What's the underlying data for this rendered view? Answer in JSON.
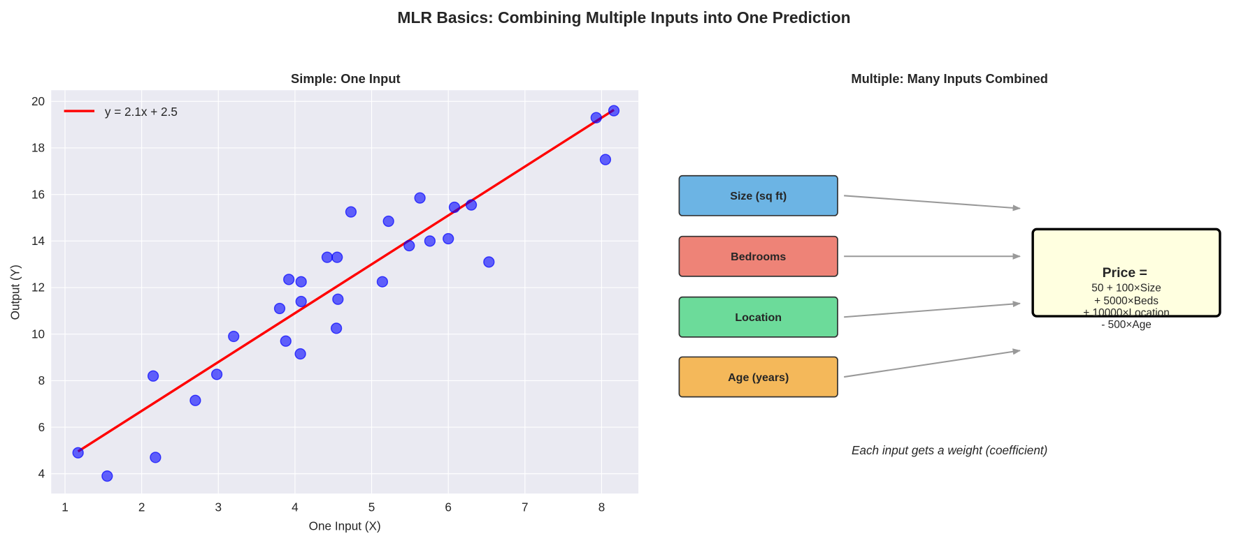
{
  "suptitle": "MLR Basics: Combining Multiple Inputs into One Prediction",
  "chart_data": [
    {
      "type": "scatter",
      "title": "Simple: One Input",
      "xlabel": "One Input (X)",
      "ylabel": "Output (Y)",
      "xlim": [
        0.82,
        8.48
      ],
      "ylim": [
        3.15,
        20.48
      ],
      "xticks": [
        1,
        2,
        3,
        4,
        5,
        6,
        7,
        8
      ],
      "yticks": [
        4,
        6,
        8,
        10,
        12,
        14,
        16,
        18,
        20
      ],
      "grid": true,
      "legend": {
        "placement": "top-left",
        "entries": [
          "y = 2.1x + 2.5"
        ]
      },
      "point_color": "#0000ff",
      "line_color": "#ff0000",
      "points": [
        [
          1.17,
          4.9
        ],
        [
          1.55,
          3.9
        ],
        [
          2.15,
          8.2
        ],
        [
          2.18,
          4.7
        ],
        [
          2.7,
          7.15
        ],
        [
          2.98,
          8.27
        ],
        [
          3.2,
          9.9
        ],
        [
          3.8,
          11.1
        ],
        [
          3.88,
          9.7
        ],
        [
          3.92,
          12.35
        ],
        [
          4.08,
          12.25
        ],
        [
          4.08,
          11.4
        ],
        [
          4.07,
          9.15
        ],
        [
          4.42,
          13.3
        ],
        [
          4.55,
          13.3
        ],
        [
          4.56,
          11.5
        ],
        [
          4.54,
          10.25
        ],
        [
          4.73,
          15.25
        ],
        [
          5.14,
          12.25
        ],
        [
          5.22,
          14.85
        ],
        [
          5.49,
          13.8
        ],
        [
          5.63,
          15.85
        ],
        [
          5.76,
          14.0
        ],
        [
          6.0,
          14.1
        ],
        [
          6.08,
          15.45
        ],
        [
          6.3,
          15.55
        ],
        [
          6.53,
          13.1
        ],
        [
          7.93,
          19.3
        ],
        [
          8.05,
          17.5
        ],
        [
          8.16,
          19.6
        ]
      ],
      "fit_line": {
        "slope": 2.1,
        "intercept": 2.5,
        "x_range": [
          1.17,
          8.16
        ]
      }
    },
    {
      "type": "diagram",
      "title": "Multiple: Many Inputs Combined",
      "inputs": [
        {
          "label": "Size (sq ft)",
          "color": "#6cb4e4"
        },
        {
          "label": "Bedrooms",
          "color": "#ee8377"
        },
        {
          "label": "Location",
          "color": "#6cdb9a"
        },
        {
          "label": "Age (years)",
          "color": "#f4b85a"
        }
      ],
      "output": {
        "heading": "Price =",
        "lines": [
          "50 + 100×Size",
          "+ 5000×Beds",
          "+ 10000×Location",
          "- 500×Age"
        ],
        "color": "#ffffe0"
      },
      "caption": "Each input gets a weight (coefficient)"
    }
  ]
}
